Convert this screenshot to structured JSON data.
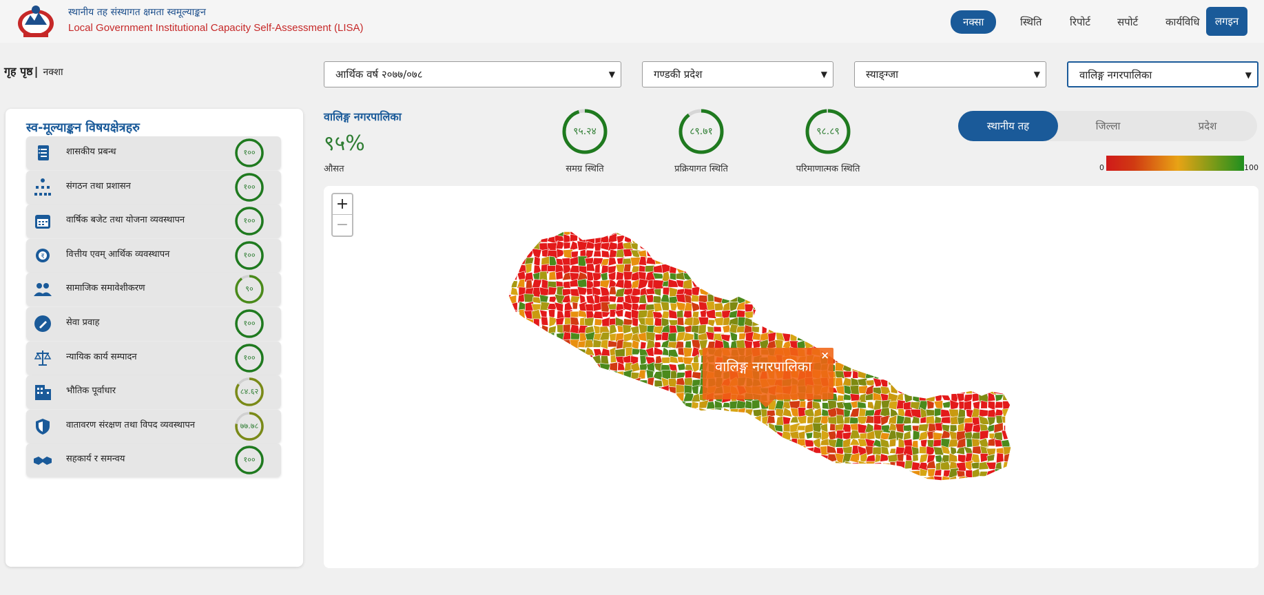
{
  "header": {
    "title_ne": "स्थानीय तह संस्थागत क्षमता स्वमूल्याङ्कन",
    "title_en": "Local Government Institutional Capacity Self-Assessment (LISA)",
    "nav": [
      {
        "label": "नक्सा",
        "active": true
      },
      {
        "label": "स्थिति",
        "active": false
      },
      {
        "label": "रिपोर्ट",
        "active": false
      },
      {
        "label": "सपोर्ट",
        "active": false
      },
      {
        "label": "कार्यविधि",
        "active": false
      }
    ],
    "login_label": "लगइन"
  },
  "breadcrumb": {
    "home": "गृह पृष्ठ",
    "separator": "|",
    "current": "नक्शा"
  },
  "filters": {
    "fiscal_year": "आर्थिक वर्ष २०७७/०७८",
    "province": "गण्डकी प्रदेश",
    "district": "स्याङ्ग्जा",
    "municipality": "वालिङ्ग नगरपालिका"
  },
  "left_panel": {
    "title": "स्व-मूल्याङ्कन विषयक्षेत्रहरु",
    "items": [
      {
        "label": "शासकीय प्रबन्ध",
        "score": "१००",
        "value": 100,
        "icon": "governance-document-icon"
      },
      {
        "label": "संगठन तथा प्रशासन",
        "score": "१००",
        "value": 100,
        "icon": "organization-hierarchy-icon"
      },
      {
        "label": "वार्षिक बजेट तथा योजना व्यवस्थापन",
        "score": "१००",
        "value": 100,
        "icon": "calendar-icon"
      },
      {
        "label": "वित्तीय एवम् आर्थिक व्यवस्थापन",
        "score": "१००",
        "value": 100,
        "icon": "finance-gear-icon"
      },
      {
        "label": "सामाजिक समावेशीकरण",
        "score": "९०",
        "value": 90,
        "icon": "people-icon"
      },
      {
        "label": "सेवा प्रवाह",
        "score": "१००",
        "value": 100,
        "icon": "wrench-icon"
      },
      {
        "label": "न्यायिक कार्य सम्पादन",
        "score": "१००",
        "value": 100,
        "icon": "scale-icon"
      },
      {
        "label": "भौतिक पूर्वाधार",
        "score": "८४.६२",
        "value": 84.62,
        "icon": "building-icon"
      },
      {
        "label": "वातावरण संरक्षण तथा विपद व्यवस्थापन",
        "score": "७७.७८",
        "value": 77.78,
        "icon": "shield-icon"
      },
      {
        "label": "सहकार्य र समन्वय",
        "score": "१००",
        "value": 100,
        "icon": "handshake-icon"
      }
    ]
  },
  "summary": {
    "name": "वालिङ्ग नगरपालिका",
    "percent": "९५%",
    "avg_label": "औसत",
    "gauges": [
      {
        "value_text": "९५.२४",
        "value": 95.24,
        "label": "समग्र स्थिति"
      },
      {
        "value_text": "८९.७१",
        "value": 89.71,
        "label": "प्रक्रियागत स्थिति"
      },
      {
        "value_text": "९८.८९",
        "value": 98.89,
        "label": "परिमाणात्मक स्थिति"
      }
    ]
  },
  "toggle": {
    "options": [
      "स्थानीय तह",
      "जिल्ला",
      "प्रदेश"
    ],
    "active": "स्थानीय तह"
  },
  "legend": {
    "min": "0",
    "max": "100"
  },
  "map": {
    "zoom_in": "+",
    "zoom_out": "−",
    "popup_text": "वालिङ्ग नगरपालिका",
    "popup_close": "×"
  },
  "colors": {
    "primary": "#1a5a99",
    "good": "#2e7d32",
    "red": "#e31a1a",
    "orange": "#e8900e",
    "olive": "#8a8a10",
    "green": "#2d8a1e"
  }
}
